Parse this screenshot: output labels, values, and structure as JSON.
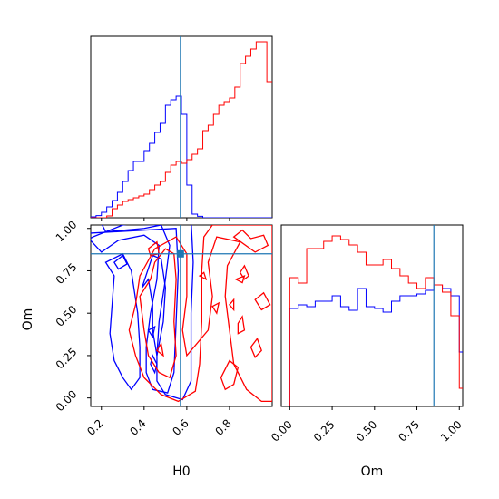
{
  "chart_data": {
    "type": "corner",
    "parameters": [
      "H0",
      "Om"
    ],
    "colors": {
      "series_a": "#0000ff",
      "series_b": "#ff0000",
      "truth": "#1f77b4"
    },
    "truth": {
      "H0": 0.57,
      "Om": 0.85
    },
    "axes": {
      "H0": {
        "label": "H0",
        "range": [
          0.15,
          1.0
        ],
        "ticks": [
          0.2,
          0.4,
          0.6,
          0.8
        ],
        "tick_labels": [
          "0.2",
          "0.4",
          "0.6",
          "0.8"
        ]
      },
      "Om": {
        "label": "Om",
        "range": [
          -0.05,
          1.02
        ],
        "ticks": [
          0.0,
          0.25,
          0.5,
          0.75,
          1.0
        ],
        "tick_labels": [
          "0.00",
          "0.25",
          "0.50",
          "0.75",
          "1.00"
        ]
      }
    },
    "hist_H0": {
      "bin_start": 0.15,
      "bin_width": 0.025,
      "series_a": [
        0.005,
        0.012,
        0.03,
        0.06,
        0.095,
        0.14,
        0.2,
        0.26,
        0.31,
        0.31,
        0.37,
        0.41,
        0.47,
        0.52,
        0.62,
        0.65,
        0.67,
        0.57,
        0.18,
        0.02,
        0.008,
        0,
        0,
        0,
        0,
        0,
        0,
        0,
        0,
        0,
        0,
        0,
        0,
        0
      ],
      "series_b": [
        0,
        0,
        0,
        0.01,
        0.05,
        0.07,
        0.09,
        0.1,
        0.11,
        0.12,
        0.13,
        0.155,
        0.18,
        0.2,
        0.25,
        0.29,
        0.31,
        0.3,
        0.32,
        0.35,
        0.38,
        0.48,
        0.51,
        0.57,
        0.62,
        0.64,
        0.66,
        0.72,
        0.85,
        0.89,
        0.93,
        0.97,
        0.97,
        0.75
      ]
    },
    "hist_Om": {
      "bin_start": -0.05,
      "bin_width": 0.05,
      "series_a": [
        0.0,
        0.54,
        0.56,
        0.55,
        0.58,
        0.58,
        0.61,
        0.55,
        0.53,
        0.65,
        0.55,
        0.54,
        0.52,
        0.58,
        0.61,
        0.61,
        0.62,
        0.64,
        0.67,
        0.65,
        0.61,
        0.3
      ],
      "series_b": [
        0.0,
        0.71,
        0.68,
        0.87,
        0.87,
        0.91,
        0.94,
        0.92,
        0.89,
        0.85,
        0.78,
        0.78,
        0.81,
        0.76,
        0.72,
        0.68,
        0.65,
        0.71,
        0.67,
        0.63,
        0.5,
        0.1
      ]
    }
  }
}
